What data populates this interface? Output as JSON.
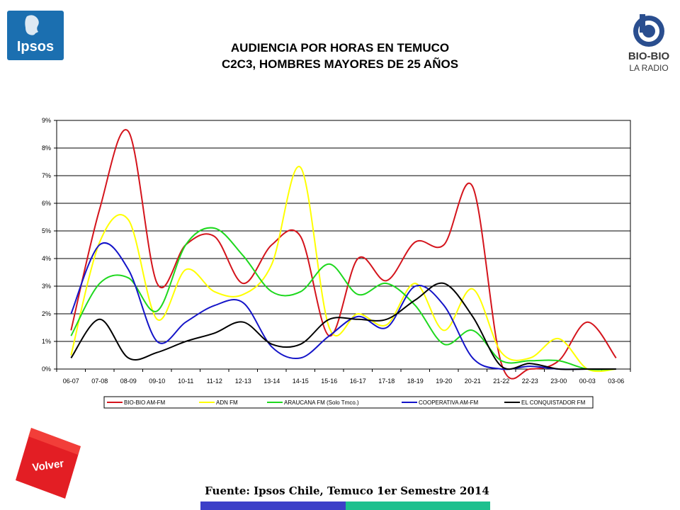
{
  "title": [
    "AUDIENCIA POR HORAS EN TEMUCO",
    "C2C3, HOMBRES MAYORES DE 25 AÑOS"
  ],
  "logos": {
    "ipsos": "Ipsos",
    "biobio_name": "BIO-BIO",
    "biobio_sub": "LA RADIO"
  },
  "volver_label": "Volver",
  "footer_source": "Fuente: Ipsos Chile, Temuco 1er Semestre 2014",
  "colors": {
    "ipsos_blue": "#1b6fb0",
    "biobio_blue": "#2a4e8f",
    "volver_red": "#e31e24",
    "footer_bar_left": "#3c3fc8",
    "footer_bar_right": "#1dc08e"
  },
  "chart_data": {
    "type": "line",
    "title": "",
    "xlabel": "",
    "ylabel": "",
    "ylim": [
      0,
      9
    ],
    "yticks": [
      "0%",
      "1%",
      "2%",
      "3%",
      "4%",
      "5%",
      "6%",
      "7%",
      "8%",
      "9%"
    ],
    "grid": true,
    "legend_position": "bottom",
    "categories": [
      "06-07",
      "07-08",
      "08-09",
      "09-10",
      "10-11",
      "11-12",
      "12-13",
      "13-14",
      "14-15",
      "15-16",
      "16-17",
      "17-18",
      "18-19",
      "19-20",
      "20-21",
      "21-22",
      "22-23",
      "23-00",
      "00-03",
      "03-06"
    ],
    "series": [
      {
        "name": "BIO-BIO AM-FM",
        "color": "#d4141c",
        "values": [
          1.4,
          5.8,
          8.6,
          3.1,
          4.5,
          4.8,
          3.1,
          4.5,
          4.8,
          1.2,
          4.0,
          3.2,
          4.6,
          4.5,
          6.6,
          0.2,
          0.0,
          0.3,
          1.7,
          0.4
        ]
      },
      {
        "name": "ADN FM",
        "color": "#ffff00",
        "values": [
          0.5,
          4.6,
          5.4,
          1.8,
          3.6,
          2.8,
          2.7,
          3.8,
          7.3,
          1.5,
          2.0,
          1.6,
          3.1,
          1.4,
          2.9,
          0.6,
          0.4,
          1.1,
          0.0,
          0.0
        ]
      },
      {
        "name": "ARAUCANA FM  (Solo Tmco.)",
        "color": "#1ed81e",
        "values": [
          1.2,
          3.1,
          3.3,
          2.1,
          4.5,
          5.1,
          4.1,
          2.8,
          2.8,
          3.8,
          2.7,
          3.1,
          2.3,
          0.9,
          1.4,
          0.3,
          0.3,
          0.3,
          0.0,
          0.0
        ]
      },
      {
        "name": "COOPERATIVA AM-FM",
        "color": "#1414c8",
        "values": [
          2.0,
          4.5,
          3.6,
          1.0,
          1.7,
          2.3,
          2.4,
          0.8,
          0.4,
          1.2,
          1.9,
          1.5,
          3.0,
          2.3,
          0.4,
          0.0,
          0.1,
          0.0,
          0.0,
          0.0
        ]
      },
      {
        "name": "EL CONQUISTADOR FM",
        "color": "#000000",
        "values": [
          0.4,
          1.8,
          0.4,
          0.6,
          1.0,
          1.3,
          1.7,
          0.9,
          0.9,
          1.8,
          1.8,
          1.8,
          2.5,
          3.1,
          1.9,
          0.1,
          0.2,
          0.0,
          0.0,
          0.0
        ]
      }
    ]
  }
}
